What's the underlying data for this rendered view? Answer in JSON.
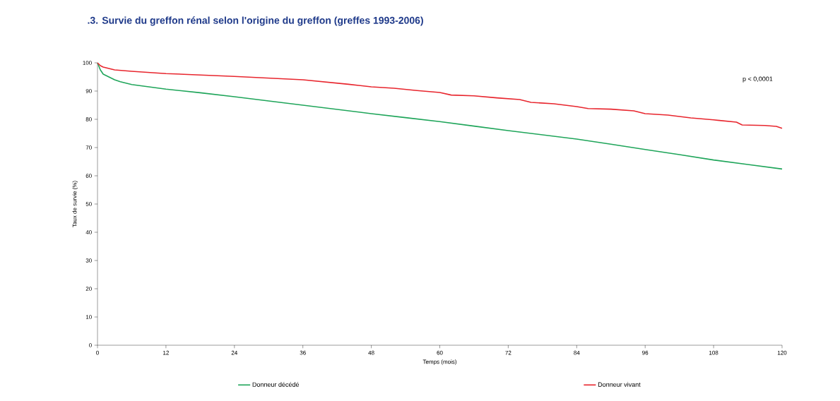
{
  "chart_data": {
    "type": "line",
    "title": ".3. Survie du greffon rénal selon l'origine du greffon (greffes 1993-2006)",
    "xlabel": "Temps (mois)",
    "ylabel": "Taux de survie (%)",
    "xlim": [
      0,
      120
    ],
    "ylim": [
      0,
      100
    ],
    "xticks": [
      0,
      12,
      24,
      36,
      48,
      60,
      72,
      84,
      96,
      108,
      120
    ],
    "yticks": [
      0,
      10,
      20,
      30,
      40,
      50,
      60,
      70,
      80,
      90,
      100
    ],
    "grid": false,
    "legend": "bottom",
    "marker": "none",
    "line_style": "solid",
    "annotations": [
      "p < 0,0001"
    ],
    "series": [
      {
        "name": "Donneur décédé",
        "color": "#1fa55a",
        "x": [
          0,
          0.5,
          1,
          2,
          3,
          4,
          6,
          9,
          12,
          18,
          24,
          30,
          36,
          42,
          48,
          54,
          60,
          66,
          72,
          78,
          84,
          90,
          96,
          102,
          108,
          114,
          120
        ],
        "values": [
          100,
          97.5,
          96,
          95,
          94,
          93.3,
          92.3,
          91.5,
          90.7,
          89.4,
          88,
          86.5,
          85,
          83.5,
          82,
          80.6,
          79.2,
          77.6,
          76,
          74.5,
          73,
          71.2,
          69.3,
          67.5,
          65.6,
          64,
          62.4
        ]
      },
      {
        "name": "Donneur vivant",
        "color": "#e8262e",
        "x": [
          0,
          0.5,
          1,
          3,
          6,
          12,
          18,
          24,
          30,
          36,
          40,
          44,
          48,
          52,
          56,
          60,
          62,
          66,
          70,
          74,
          76,
          80,
          84,
          86,
          90,
          94,
          96,
          100,
          104,
          108,
          112,
          113,
          117,
          119,
          120
        ],
        "values": [
          100,
          99,
          98.5,
          97.5,
          97,
          96.2,
          95.7,
          95.2,
          94.6,
          94,
          93.2,
          92.4,
          91.5,
          91,
          90.2,
          89.5,
          88.6,
          88.3,
          87.6,
          87,
          86,
          85.5,
          84.5,
          83.8,
          83.6,
          83,
          82,
          81.5,
          80.5,
          79.8,
          79,
          78,
          77.8,
          77.5,
          76.8
        ]
      }
    ]
  }
}
